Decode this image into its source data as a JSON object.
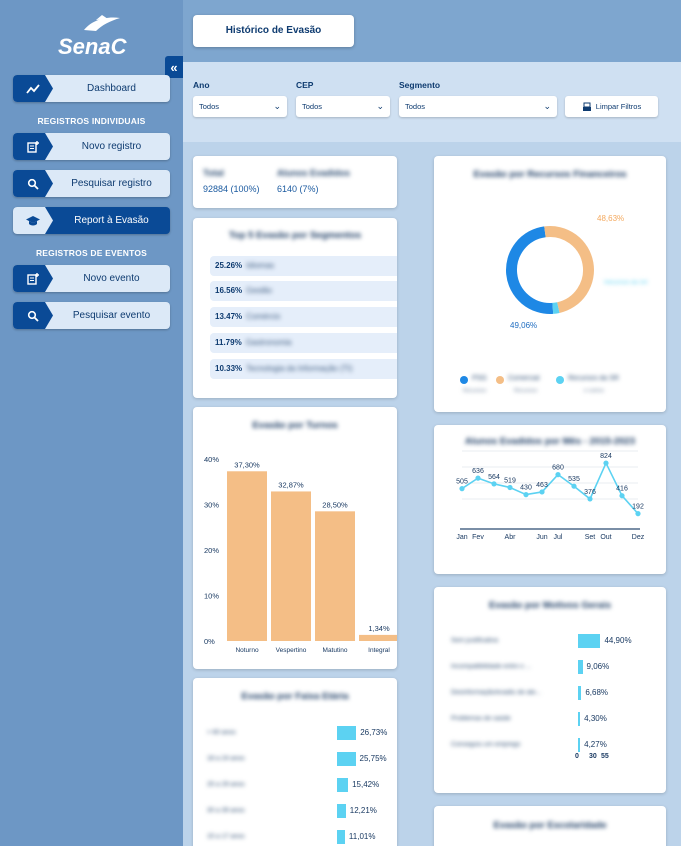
{
  "sidebar": {
    "logo_text": "SenaC",
    "collapse_glyph": "«",
    "items": [
      {
        "label": "Dashboard",
        "icon": "trend-line-icon"
      },
      {
        "label": "Novo registro",
        "icon": "add-note-icon"
      },
      {
        "label": "Pesquisar registro",
        "icon": "search-icon"
      },
      {
        "label": "Report à Evasão",
        "icon": "graduation-cap-icon"
      },
      {
        "label": "Novo evento",
        "icon": "add-note-icon"
      },
      {
        "label": "Pesquisar evento",
        "icon": "search-icon"
      }
    ],
    "sections": [
      "REGISTROS INDIVIDUAIS",
      "REGISTROS DE EVENTOS"
    ],
    "active_index": 3
  },
  "header": {
    "title": "Histórico de Evasão"
  },
  "filters": {
    "ano": {
      "label": "Ano",
      "value": "Todos"
    },
    "cep": {
      "label": "CEP",
      "value": "Todos"
    },
    "segmento": {
      "label": "Segmento",
      "value": "Todos"
    },
    "clear_label": "Limpar Filtros"
  },
  "totals": {
    "total_label": "Total",
    "total_value": "92884 (100%)",
    "evadidos_label": "Alunos Evadidos",
    "evadidos_value": "6140 (7%)"
  },
  "top_segments": {
    "title": "Top 5 Evasão por Segmentos",
    "rows": [
      {
        "pct": "25.26%",
        "name": "Idiomas"
      },
      {
        "pct": "16.56%",
        "name": "Gestão"
      },
      {
        "pct": "13.47%",
        "name": "Comércio"
      },
      {
        "pct": "11.79%",
        "name": "Gastronomia"
      },
      {
        "pct": "10.33%",
        "name": "Tecnologia da Informação (TI)"
      }
    ]
  },
  "resources": {
    "title": "Evasão por Recursos Financeiros",
    "label_comercial": "48,63%",
    "label_psg": "49,06%",
    "label_other": "Recursos da SR",
    "legend": [
      {
        "name": "PSG",
        "color": "#1e88e5",
        "sub": "Recursos"
      },
      {
        "name": "Comercial",
        "color": "#f4be86",
        "sub": "Recursos"
      },
      {
        "name": "Recursos da SR",
        "color": "#5cd2f2",
        "sub": "e outros"
      }
    ]
  },
  "turnos": {
    "title": "Evasão por Turnos"
  },
  "monthly": {
    "title": "Alunos Evadidos por Mês - 2015-2023"
  },
  "motivos": {
    "title": "Evasão por Motivos Gerais",
    "rows": [
      {
        "label": "Sem justificativa",
        "value": "44,90%",
        "pct": 44.9
      },
      {
        "label": "Incompatibilidade entre o ...",
        "value": "9,06%",
        "pct": 9.06
      },
      {
        "label": "Desinformação/evadiu de ate...",
        "value": "6,68%",
        "pct": 6.68
      },
      {
        "label": "Problemas de saúde",
        "value": "4,30%",
        "pct": 4.3
      },
      {
        "label": "Conseguiu um emprego",
        "value": "4,27%",
        "pct": 4.27
      }
    ],
    "axis_ticks": [
      "0",
      "30",
      "55"
    ]
  },
  "faixa": {
    "title": "Evasão por Faixa Etária",
    "rows": [
      {
        "label": "> 60 anos",
        "value": "26,73%",
        "pct": 26.73
      },
      {
        "label": "18 a 24 anos",
        "value": "25,75%",
        "pct": 25.75
      },
      {
        "label": "25 a 29 anos",
        "value": "15,42%",
        "pct": 15.42
      },
      {
        "label": "30 a 39 anos",
        "value": "12,21%",
        "pct": 12.21
      },
      {
        "label": "15 a 17 anos",
        "value": "11,01%",
        "pct": 11.01
      }
    ]
  },
  "escolaridade": {
    "title": "Evasão por Escolaridade"
  },
  "colors": {
    "accent": "#0a4a96",
    "orange": "#f4be86",
    "cyan": "#5cd2f2",
    "blue": "#1e88e5"
  },
  "chart_data": [
    {
      "type": "bar",
      "title": "Evasão por Turnos",
      "categories": [
        "Noturno",
        "Vespertino",
        "Matutino",
        "Integral"
      ],
      "values": [
        37.3,
        32.87,
        28.5,
        1.34
      ],
      "value_labels": [
        "37,30%",
        "32,87%",
        "28,50%",
        "1,34%"
      ],
      "ylim": [
        0,
        40
      ],
      "yticks": [
        "0%",
        "10%",
        "20%",
        "30%",
        "40%"
      ],
      "color": "#f4be86"
    },
    {
      "type": "line",
      "title": "Alunos Evadidos por Mês - 2015-2023",
      "categories": [
        "Jan",
        "Fev",
        "Mar",
        "Abr",
        "Mai",
        "Jun",
        "Jul",
        "Ago",
        "Set",
        "Out",
        "Nov",
        "Dez"
      ],
      "tick_labels": [
        "Jan",
        "Fev",
        "",
        "Abr",
        "",
        "Jun",
        "Jul",
        "",
        "Set",
        "Out",
        "",
        "Dez"
      ],
      "values": [
        505,
        636,
        564,
        519,
        430,
        463,
        680,
        535,
        376,
        824,
        416,
        192
      ],
      "ylim": [
        0,
        1000
      ],
      "color": "#5cd2f2"
    },
    {
      "type": "pie",
      "title": "Evasão por Recursos Financeiros",
      "labels": [
        "PSG",
        "Comercial",
        "Recursos da SR"
      ],
      "values": [
        49.06,
        48.63,
        2.31
      ],
      "colors": [
        "#1e88e5",
        "#f4be86",
        "#5cd2f2"
      ]
    }
  ]
}
